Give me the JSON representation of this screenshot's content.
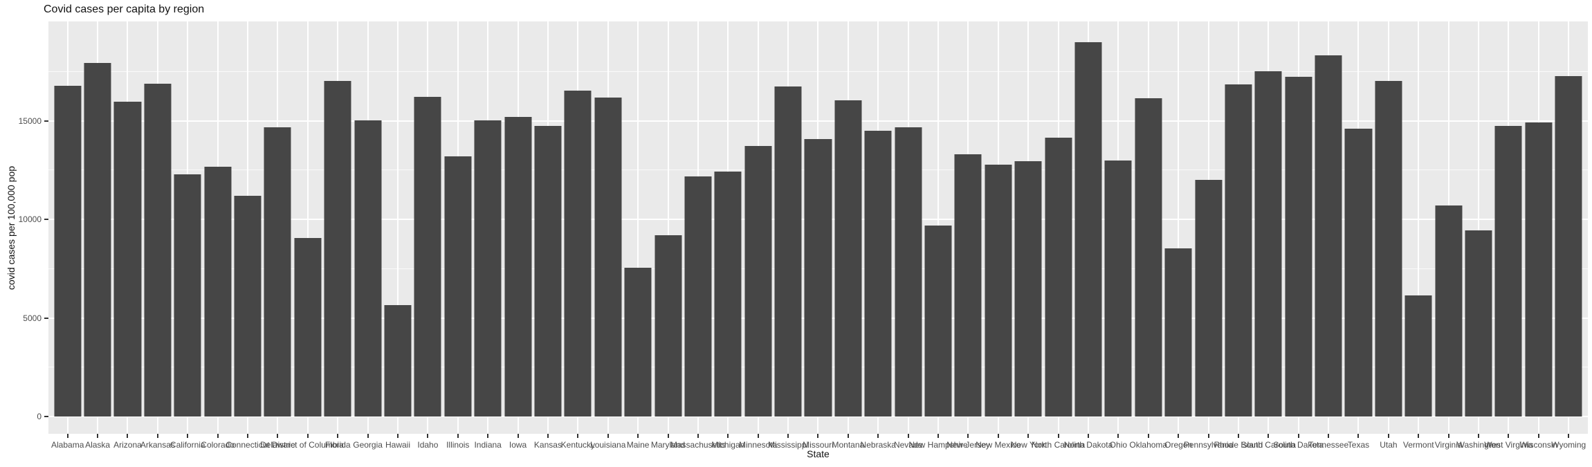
{
  "figure": {
    "kind": "ggplot-style bar chart"
  },
  "chart_data": {
    "type": "bar",
    "title": "Covid cases per capita by region",
    "xlabel": "State",
    "ylabel": "covid cases per 100,000 pop",
    "categories": [
      "Alabama",
      "Alaska",
      "Arizona",
      "Arkansas",
      "California",
      "Colorado",
      "Connecticut",
      "Delaware",
      "District of Columbia",
      "Florida",
      "Georgia",
      "Hawaii",
      "Idaho",
      "Illinois",
      "Indiana",
      "Iowa",
      "Kansas",
      "Kentucky",
      "Louisiana",
      "Maine",
      "Maryland",
      "Massachusetts",
      "Michigan",
      "Minnesota",
      "Mississippi",
      "Missouri",
      "Montana",
      "Nebraska",
      "Nevada",
      "New Hampshire",
      "New Jersey",
      "New Mexico",
      "New York",
      "North Carolina",
      "North Dakota",
      "Ohio",
      "Oklahoma",
      "Oregon",
      "Pennsylvania",
      "Rhode Island",
      "South Carolina",
      "South Dakota",
      "Tennessee",
      "Texas",
      "Utah",
      "Vermont",
      "Virginia",
      "Washington",
      "West Virginia",
      "Wisconsin",
      "Wyoming"
    ],
    "values": [
      16800,
      17950,
      16000,
      16900,
      12300,
      12700,
      11200,
      14700,
      9050,
      17050,
      15050,
      5650,
      16250,
      13200,
      15050,
      15200,
      14750,
      16550,
      16200,
      7550,
      9200,
      12200,
      12450,
      13750,
      16750,
      14100,
      16050,
      14500,
      14700,
      9700,
      13300,
      12800,
      12950,
      14150,
      19000,
      13000,
      16150,
      8550,
      12000,
      16850,
      17550,
      17250,
      18350,
      14600,
      17050,
      6150,
      10700,
      9450,
      14750,
      14950,
      17300
    ],
    "yticks": [
      0,
      5000,
      10000,
      15000
    ],
    "y_minor_gridlines": [
      2500,
      7500,
      12500,
      17500
    ],
    "ylim": [
      -950,
      20000
    ],
    "grid": true,
    "legend": false,
    "colors": {
      "bar_fill": "#464646",
      "panel_background": "#EAEAEA",
      "gridline": "#FFFFFF",
      "tick_label": "#4D4D4D",
      "tick_mark": "#333333",
      "text": "#111111"
    }
  }
}
